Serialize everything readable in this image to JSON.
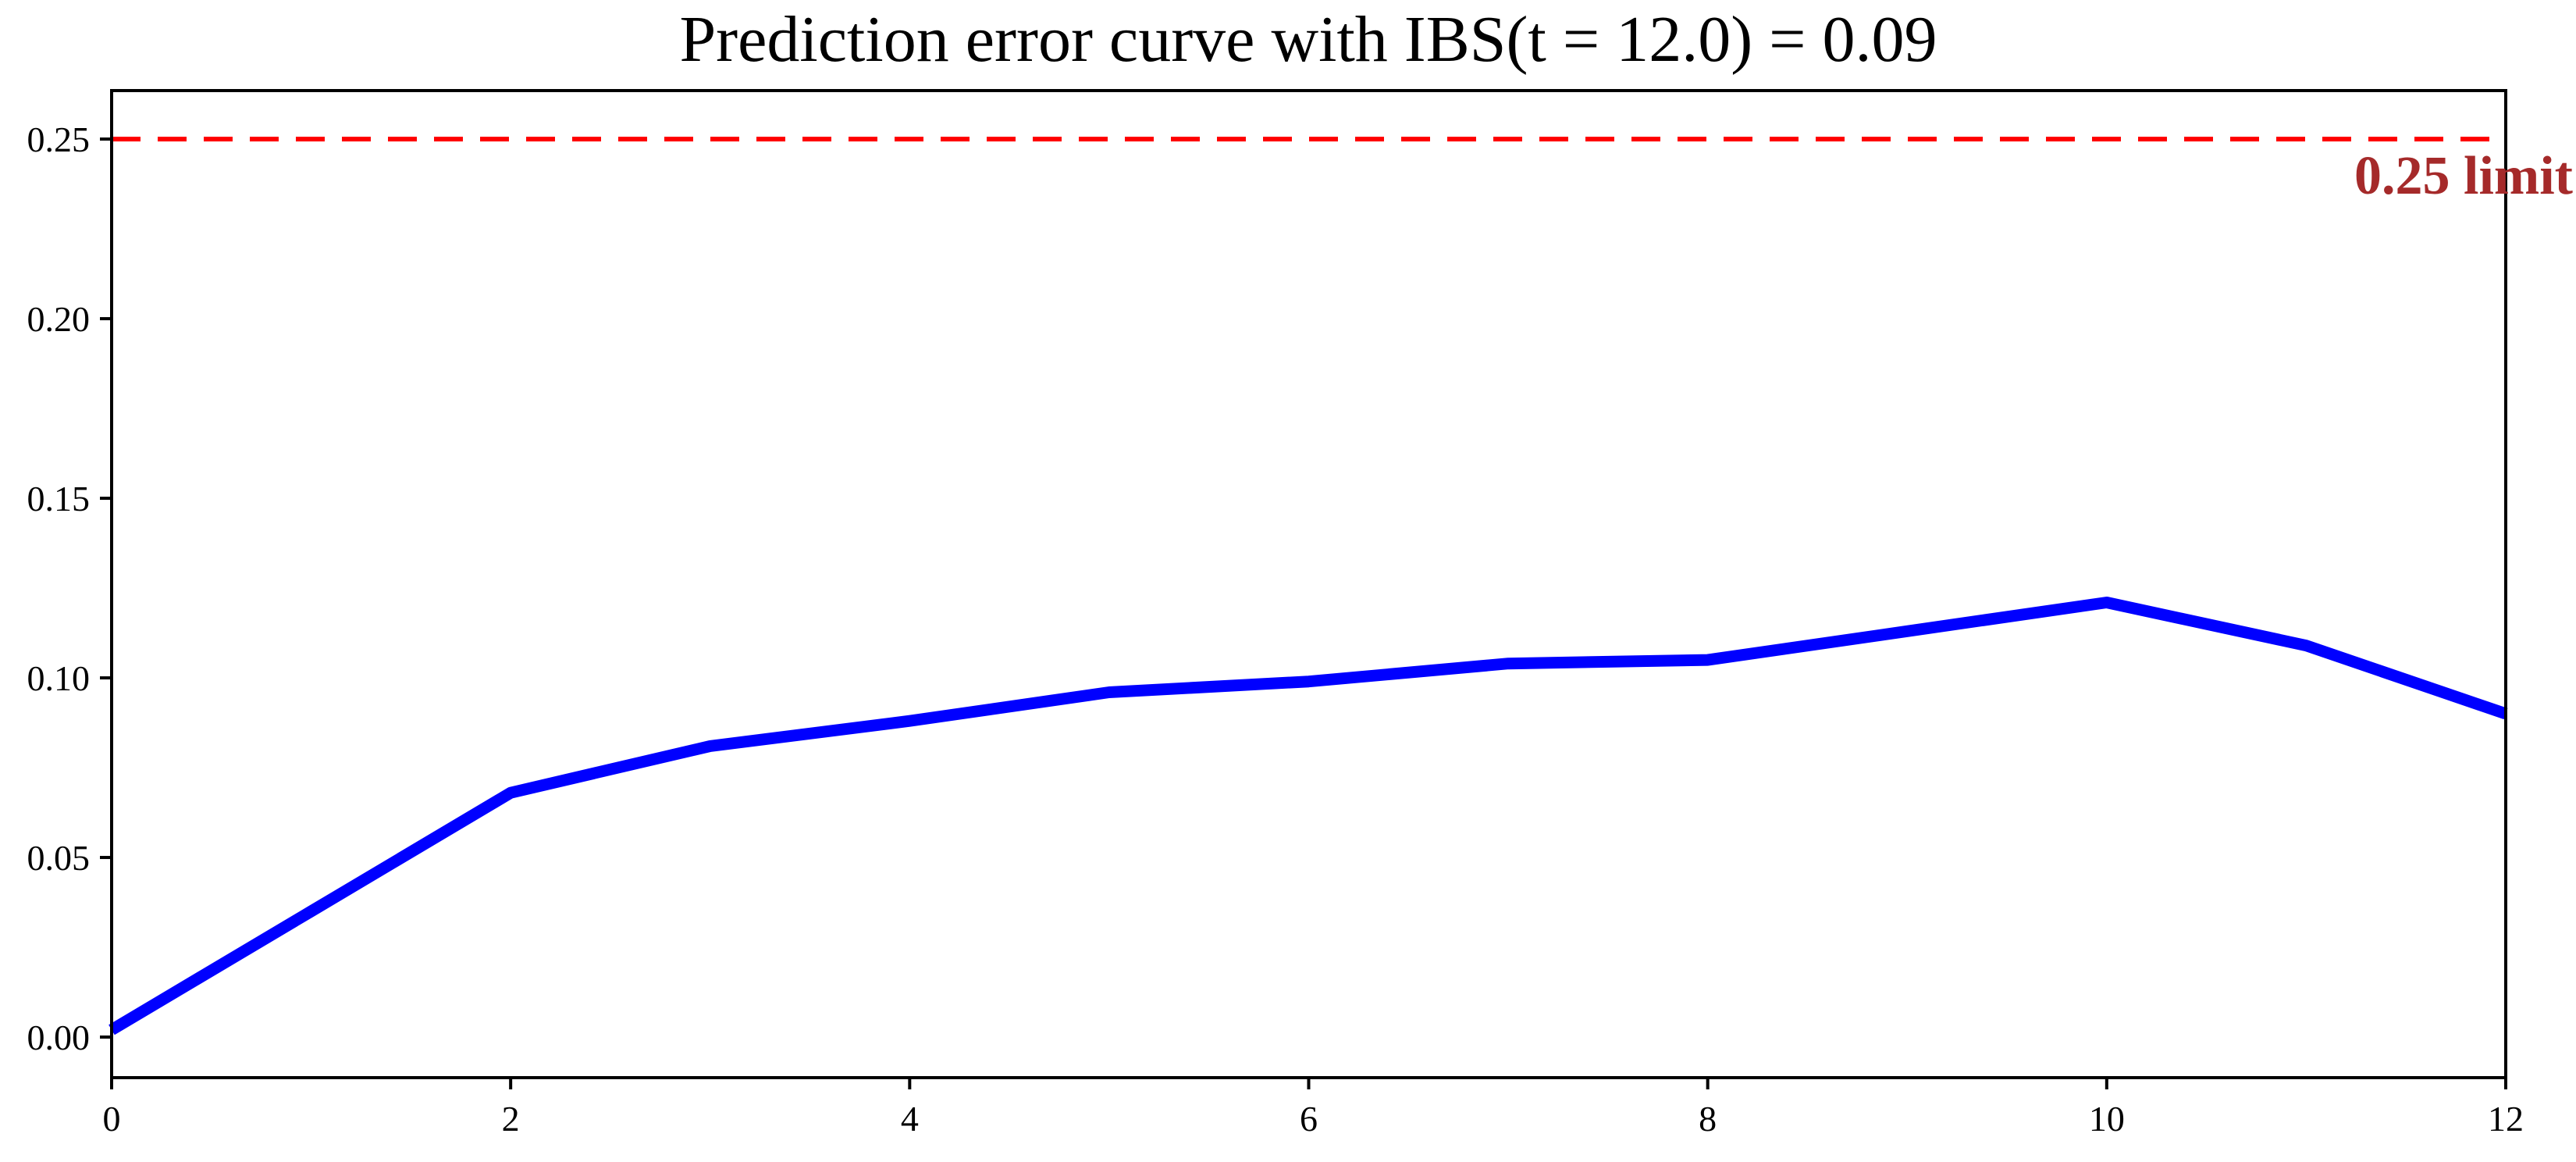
{
  "figure": {
    "background": "#ffffff",
    "axis_color": "#000000",
    "text_color": "#000000"
  },
  "chart_data": {
    "type": "line",
    "title": "Prediction error curve with IBS(t = 12.0) = 0.09",
    "xlabel": "",
    "ylabel": "",
    "xlim": [
      0,
      12
    ],
    "ylim": [
      -0.0113,
      0.2635
    ],
    "grid": false,
    "legend": "none",
    "series": [
      {
        "name": "prediction error curve",
        "x": [
          0,
          1,
          2,
          3,
          4,
          5,
          6,
          7,
          8,
          9,
          10,
          11,
          12
        ],
        "y": [
          0.002,
          0.035,
          0.068,
          0.081,
          0.088,
          0.096,
          0.099,
          0.104,
          0.105,
          0.113,
          0.121,
          0.109,
          0.09
        ],
        "color": "#0000ff",
        "line_width": 15
      }
    ],
    "hline": {
      "y": 0.25,
      "color": "#ff0000",
      "style": "dashed",
      "dash": [
        37,
        22
      ],
      "line_width": 6,
      "label": "0.25 limit",
      "label_color": "#a52a2a"
    },
    "xticks": {
      "values": [
        0,
        2,
        4,
        6,
        8,
        10,
        12
      ],
      "labels": [
        "0",
        "2",
        "4",
        "6",
        "8",
        "10",
        "12"
      ]
    },
    "yticks": {
      "values": [
        0.0,
        0.05,
        0.1,
        0.15,
        0.2,
        0.25
      ],
      "labels": [
        "0.00",
        "0.05",
        "0.10",
        "0.15",
        "0.20",
        "0.25"
      ]
    }
  }
}
